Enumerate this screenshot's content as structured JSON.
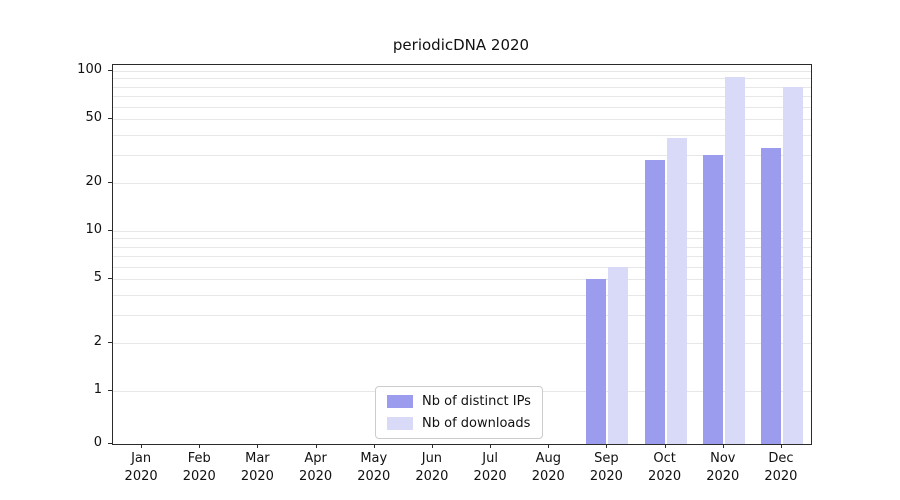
{
  "chart_data": {
    "type": "bar",
    "title": "periodicDNA 2020",
    "categories": [
      "Jan",
      "Feb",
      "Mar",
      "Apr",
      "May",
      "Jun",
      "Jul",
      "Aug",
      "Sep",
      "Oct",
      "Nov",
      "Dec"
    ],
    "category_year": "2020",
    "series": [
      {
        "name": "Nb of distinct IPs",
        "color": "#9c9cee",
        "values": [
          0,
          0,
          0,
          0,
          0,
          0,
          0,
          0,
          5,
          28,
          30,
          33
        ]
      },
      {
        "name": "Nb of downloads",
        "color": "#d9d9f8",
        "values": [
          0,
          0,
          0,
          0,
          0,
          0,
          0,
          0,
          6,
          38,
          92,
          80
        ]
      }
    ],
    "yscale": "symlog",
    "yticks": [
      0,
      1,
      2,
      5,
      10,
      20,
      50,
      100
    ],
    "ylim": [
      0,
      110
    ],
    "xlabel": "",
    "ylabel": "",
    "grid": "horizontal-log-minor",
    "legend_position": "lower-center",
    "axis_color": "#2b2b2b",
    "grid_color": "#e7e7e7"
  }
}
